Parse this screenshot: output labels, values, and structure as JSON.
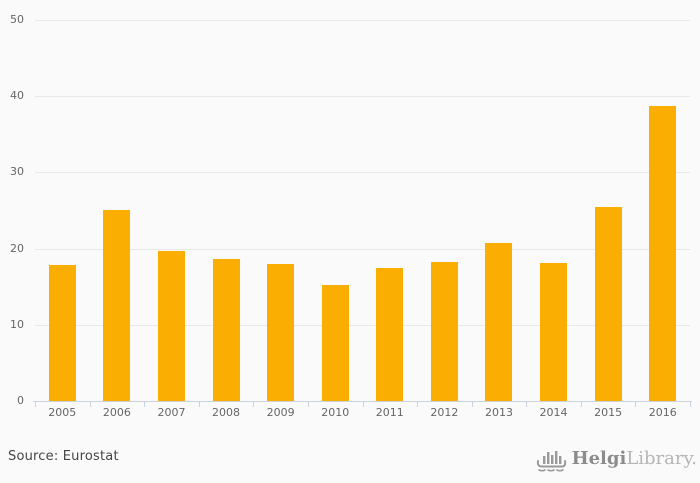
{
  "chart_data": {
    "type": "bar",
    "title": "",
    "xlabel": "",
    "ylabel": "",
    "categories": [
      "2005",
      "2006",
      "2007",
      "2008",
      "2009",
      "2010",
      "2011",
      "2012",
      "2013",
      "2014",
      "2015",
      "2016"
    ],
    "values": [
      17.9,
      25.1,
      19.7,
      18.6,
      18.0,
      15.2,
      17.4,
      18.3,
      20.7,
      18.1,
      25.5,
      38.7
    ],
    "ylim": [
      0,
      50
    ],
    "yticks": [
      0,
      10,
      20,
      30,
      40,
      50
    ],
    "grid": true,
    "legend": false,
    "bar_color": "#f9ae01"
  },
  "colors": {
    "background": "#fafafa",
    "gridline": "#e8e8e8",
    "axis": "#ccd3df",
    "tick_label": "#666666",
    "bar": "#f9ae01"
  },
  "footer": {
    "source_label": "Source: Eurostat",
    "brand_primary": "Helgi",
    "brand_secondary": "Library."
  }
}
